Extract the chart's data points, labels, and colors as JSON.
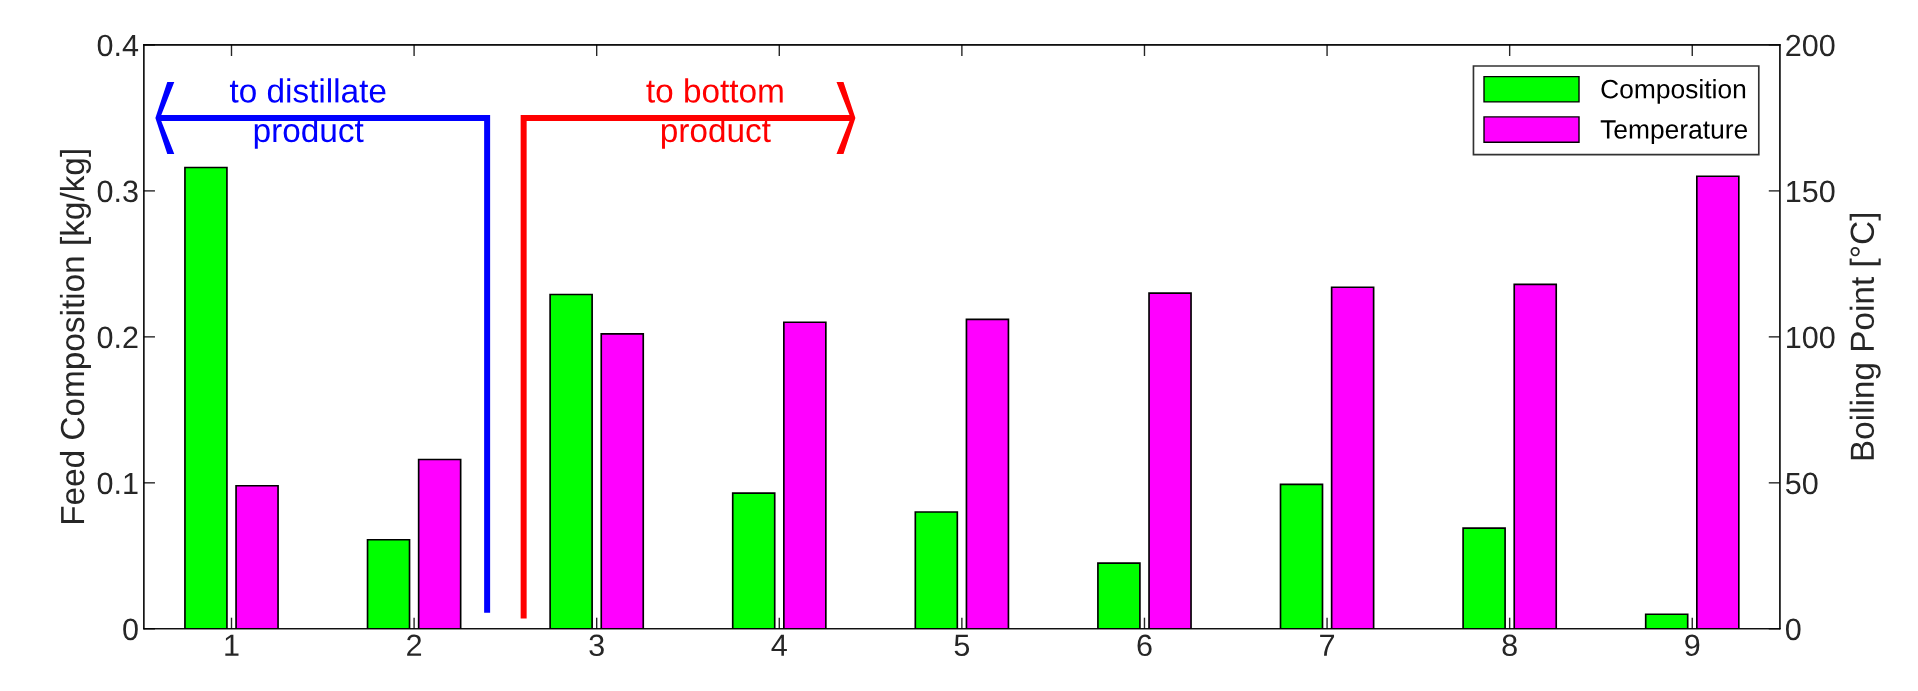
{
  "chart_data": {
    "type": "bar",
    "ylabel": "Feed Composition [kg/kg]",
    "y2label": "Boiling Point [°C]",
    "categories": [
      "1",
      "2",
      "3",
      "4",
      "5",
      "6",
      "7",
      "8",
      "9"
    ],
    "series": [
      {
        "name": "Composition",
        "color": "#00ff00",
        "values": [
          0.316,
          0.061,
          0.229,
          0.093,
          0.08,
          0.045,
          0.099,
          0.069,
          0.01
        ]
      },
      {
        "name": "Temperature",
        "color": "#ff00ff",
        "axis": "y2",
        "values": [
          49,
          58,
          101,
          105,
          106,
          115,
          117,
          118,
          155
        ]
      }
    ],
    "ylim": [
      0,
      0.4
    ],
    "yticks": [
      0,
      0.1,
      0.2,
      0.3,
      0.4
    ],
    "y2lim": [
      0,
      200
    ],
    "y2ticks": [
      0,
      50,
      100,
      150,
      200
    ],
    "annotations": [
      "to distillate\nproduct",
      "to bottom\nproduct"
    ],
    "legend": "top right",
    "grid": false
  }
}
